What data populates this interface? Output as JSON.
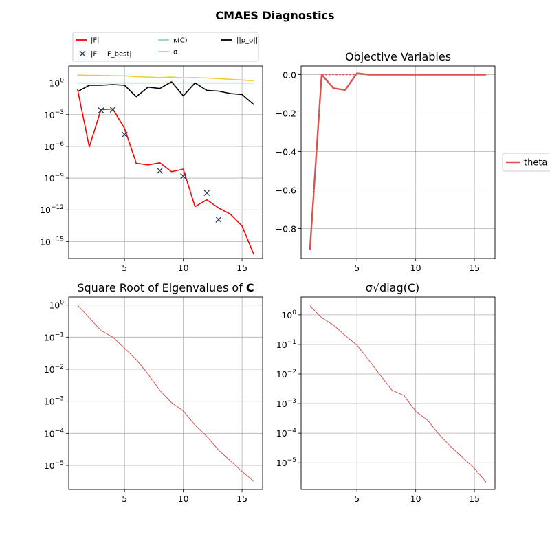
{
  "suptitle": "CMAES Diagnostics",
  "colors": {
    "F": "#ff0000",
    "Fbest": "#233a54",
    "kappa": "#8fd3d0",
    "sigma": "#f7c934",
    "ps": "#000000",
    "theta": "#d9534f",
    "grid": "#b0b0b0"
  },
  "legend_top": {
    "placement": "above-top-left",
    "entries": [
      {
        "key": "F",
        "label": "|F|",
        "marker": "line"
      },
      {
        "key": "Fbest",
        "label": "|F − F_best|",
        "marker": "x"
      },
      {
        "key": "kappa",
        "label": "κ(C)",
        "marker": "line"
      },
      {
        "key": "sigma",
        "label": "σ",
        "marker": "line"
      },
      {
        "key": "ps",
        "label": "||p_σ||",
        "marker": "line"
      }
    ]
  },
  "legend_right": {
    "placement": "outside-right",
    "entries": [
      {
        "key": "theta",
        "label": "theta"
      }
    ]
  },
  "chart_data": [
    {
      "type": "line",
      "panel": "top-left",
      "title": "",
      "yscale": "log",
      "xlim": [
        0.25,
        16.75
      ],
      "ylim_log10": [
        -16.6,
        1.6
      ],
      "xticks": [
        5,
        10,
        15
      ],
      "yticks": [
        0,
        -3,
        -6,
        -9,
        -12,
        -15
      ],
      "grid": true,
      "series": [
        {
          "key": "sigma",
          "name": "σ",
          "style": "line",
          "x": [
            1,
            2,
            3,
            4,
            5,
            6,
            7,
            8,
            9,
            10,
            11,
            12,
            13,
            14,
            15,
            16
          ],
          "y": [
            5.5,
            5.3,
            5.1,
            4.9,
            4.7,
            3.9,
            3.5,
            3.2,
            3.6,
            3.0,
            3.2,
            2.9,
            2.6,
            2.2,
            1.9,
            1.6
          ]
        },
        {
          "key": "kappa",
          "name": "κ(C)",
          "style": "line",
          "x": [
            1,
            2,
            3,
            4,
            5,
            6,
            7,
            8,
            9,
            10,
            11,
            12,
            13,
            14,
            15,
            16
          ],
          "y": [
            1.0,
            1.0,
            1.0,
            1.0,
            1.0,
            1.0,
            1.0,
            1.0,
            1.0,
            1.0,
            1.0,
            1.0,
            1.0,
            1.0,
            1.0,
            1.0
          ]
        },
        {
          "key": "ps",
          "name": "||p_σ||",
          "style": "line",
          "x": [
            1,
            2,
            3,
            4,
            5,
            6,
            7,
            8,
            9,
            10,
            11,
            12,
            13,
            14,
            15,
            16
          ],
          "y": [
            0.15,
            0.6,
            0.6,
            0.7,
            0.6,
            0.05,
            0.4,
            0.3,
            1.3,
            0.06,
            1.0,
            0.2,
            0.17,
            0.1,
            0.08,
            0.009
          ]
        },
        {
          "key": "F",
          "name": "|F|",
          "style": "line",
          "x": [
            1,
            2,
            3,
            4,
            5,
            6,
            7,
            8,
            9,
            10,
            11,
            12,
            13,
            14,
            15,
            16
          ],
          "y": [
            0.25,
            9e-07,
            0.003,
            0.0035,
            5e-05,
            2.5e-08,
            1.8e-08,
            2.8e-08,
            4e-09,
            7e-09,
            2e-12,
            9e-12,
            1.5e-12,
            4e-13,
            3e-14,
            6e-17
          ]
        },
        {
          "key": "Fbest",
          "name": "|F − F_best|",
          "style": "markers",
          "x": [
            3,
            4,
            5,
            8,
            10,
            12,
            13
          ],
          "y": [
            0.0025,
            0.003,
            1.3e-05,
            5e-09,
            1.5e-09,
            4e-11,
            1.2e-13
          ]
        }
      ]
    },
    {
      "type": "line",
      "panel": "top-right",
      "title": "Objective Variables",
      "xlim": [
        0.25,
        16.75
      ],
      "ylim": [
        -0.955,
        0.045
      ],
      "xticks": [
        5,
        10,
        15
      ],
      "yticks": [
        0.0,
        -0.2,
        -0.4,
        -0.6,
        -0.8
      ],
      "ytick_labels": [
        "0.0",
        "−0.2",
        "−0.4",
        "−0.6",
        "−0.8"
      ],
      "grid": true,
      "series": [
        {
          "key": "theta",
          "name": "theta",
          "style": "line",
          "x": [
            1,
            2,
            3,
            4,
            5,
            6,
            7,
            8,
            9,
            10,
            11,
            12,
            13,
            14,
            15,
            16
          ],
          "y": [
            -0.91,
            0.0,
            -0.07,
            -0.08,
            0.008,
            0.0,
            0.0,
            0.0,
            0.0,
            0.0,
            0.0,
            0.0,
            0.0,
            0.0,
            0.0,
            0.0
          ]
        }
      ],
      "reference_line": {
        "style": "dashed",
        "x": [
          2,
          5
        ],
        "y": 0.0
      }
    },
    {
      "type": "line",
      "panel": "bottom-left",
      "title": "Square Root of Eigenvalues of C",
      "yscale": "log",
      "xlim": [
        0.25,
        16.75
      ],
      "ylim_log10": [
        -5.75,
        0.25
      ],
      "xticks": [
        5,
        10,
        15
      ],
      "yticks": [
        0,
        -1,
        -2,
        -3,
        -4,
        -5
      ],
      "grid": true,
      "series": [
        {
          "key": "theta",
          "name": "",
          "style": "thin-line",
          "x": [
            1,
            2,
            3,
            4,
            5,
            6,
            7,
            8,
            9,
            10,
            11,
            12,
            13,
            14,
            15,
            16
          ],
          "y": [
            1.0,
            0.4,
            0.16,
            0.1,
            0.045,
            0.02,
            0.007,
            0.0022,
            0.0009,
            0.0005,
            0.00018,
            8e-05,
            3e-05,
            1.4e-05,
            6.5e-06,
            3.2e-06
          ]
        }
      ]
    },
    {
      "type": "line",
      "panel": "bottom-right",
      "title": "σ√diag(C)",
      "yscale": "log",
      "xlim": [
        0.25,
        16.75
      ],
      "ylim_log10": [
        -5.9,
        0.6
      ],
      "xticks": [
        5,
        10,
        15
      ],
      "yticks": [
        0,
        -1,
        -2,
        -3,
        -4,
        -5
      ],
      "grid": true,
      "series": [
        {
          "key": "theta",
          "name": "",
          "style": "thin-line",
          "x": [
            1,
            2,
            3,
            4,
            5,
            6,
            7,
            8,
            9,
            10,
            11,
            12,
            13,
            14,
            15,
            16
          ],
          "y": [
            2.0,
            0.8,
            0.45,
            0.2,
            0.095,
            0.03,
            0.009,
            0.0028,
            0.0019,
            0.00055,
            0.00028,
            9e-05,
            3.5e-05,
            1.5e-05,
            6.5e-06,
            2.2e-06
          ]
        }
      ]
    }
  ]
}
